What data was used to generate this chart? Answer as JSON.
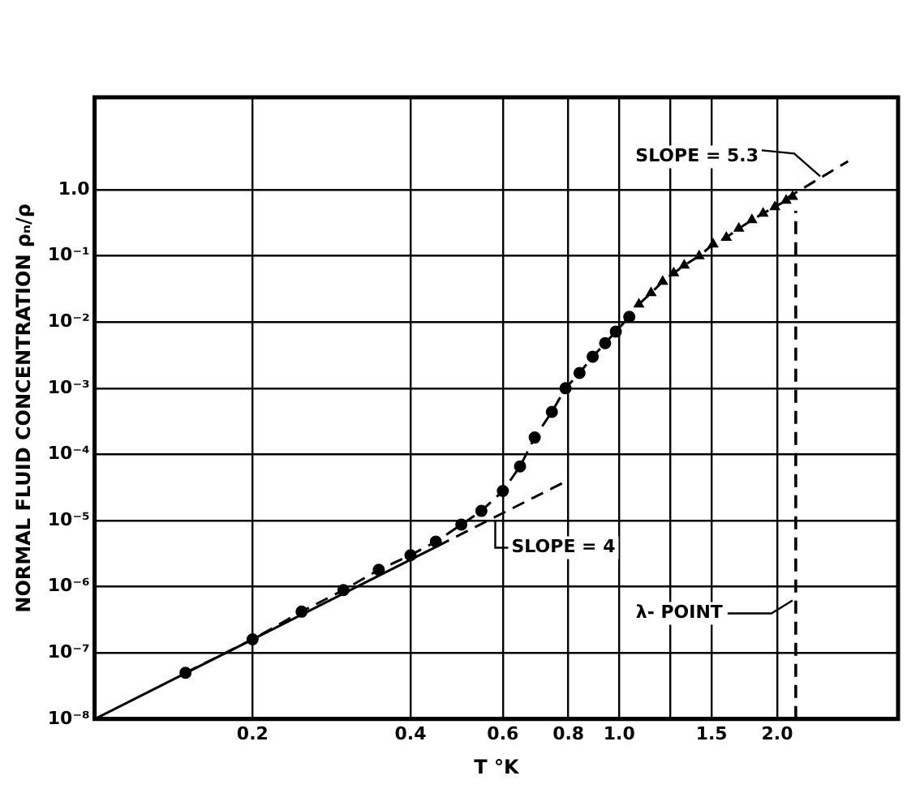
{
  "chart_data": {
    "type": "line",
    "xlabel": "T °K",
    "ylabel": "NORMAL FLUID CONCENTRATION ρₙ/ρ",
    "log": "xy",
    "grid": true,
    "legend": false,
    "marker": "circle",
    "xlim": [
      0.1,
      3.4
    ],
    "ylim": [
      1e-08,
      25
    ],
    "xticks": [
      0.2,
      0.4,
      0.6,
      0.8,
      {
        "value": 1,
        "label": "1.0"
      },
      {
        "value": 1.25,
        "label": null
      },
      1.5,
      {
        "value": 2,
        "label": "2.0"
      }
    ],
    "yticks": [
      {
        "value": 1e-08,
        "label": "10⁻⁸"
      },
      {
        "value": 1e-07,
        "label": "10⁻⁷"
      },
      {
        "value": 1e-06,
        "label": "10⁻⁶"
      },
      {
        "value": 1e-05,
        "label": "10⁻⁵"
      },
      {
        "value": 0.0001,
        "label": "10⁻⁴"
      },
      {
        "value": 0.001,
        "label": "10⁻³"
      },
      {
        "value": 0.01,
        "label": "10⁻²"
      },
      {
        "value": 0.1,
        "label": "10⁻¹"
      },
      {
        "value": 1,
        "label": "1.0"
      }
    ],
    "series": [
      {
        "color": "#000000",
        "line_style": "dashed",
        "x": [
          0.149,
          0.2,
          0.248,
          0.298,
          0.348,
          0.4,
          0.447,
          0.5,
          0.546,
          0.6,
          0.647,
          0.69,
          0.744,
          0.79,
          0.84,
          0.89,
          0.94,
          0.985,
          1.045
        ],
        "values": [
          5e-08,
          1.6e-07,
          4.2e-07,
          8.9e-07,
          1.8e-06,
          3e-06,
          4.8e-06,
          8.7e-06,
          1.4e-05,
          2.8e-05,
          6.6e-05,
          0.00018,
          0.00044,
          0.001,
          0.0017,
          0.003,
          0.0048,
          0.0072,
          0.012
        ]
      },
      {
        "color": "#000000",
        "marker": "triangle",
        "line_style": "dashed",
        "x": [
          1.09,
          1.15,
          1.21,
          1.27,
          1.33,
          1.42,
          1.51,
          1.6,
          1.69,
          1.79,
          1.88,
          1.98,
          2.08,
          2.14
        ],
        "values": [
          0.0186,
          0.0276,
          0.041,
          0.055,
          0.072,
          0.1,
          0.15,
          0.19,
          0.26,
          0.35,
          0.44,
          0.55,
          0.69,
          0.79
        ]
      },
      {
        "type": "line",
        "color": "#000000",
        "marker": "none",
        "line_style": "solid",
        "x": [
          0.1,
          0.45
        ],
        "values": [
          1e-08,
          4.1e-06
        ]
      },
      {
        "type": "line",
        "color": "#000000",
        "marker": "none",
        "line_style": "dashed",
        "x": [
          0.45,
          0.8
        ],
        "values": [
          4.1e-06,
          4.1e-05
        ]
      },
      {
        "type": "line",
        "color": "#000000",
        "marker": "none",
        "line_style": "dashed",
        "x": [
          2.08,
          2.73
        ],
        "values": [
          0.74,
          2.7
        ]
      }
    ],
    "ref_lines": [
      {
        "axis": "x",
        "value": 2.17,
        "label": "λ- POINT",
        "line_style": "dashed",
        "color": "#000000"
      }
    ],
    "annotations": [
      {
        "text": "SLOPE = 4",
        "x": 0.56,
        "y": 1.2e-05
      },
      {
        "text": "SLOPE = 5.3",
        "x": 2.45,
        "y": 1.6
      }
    ]
  }
}
